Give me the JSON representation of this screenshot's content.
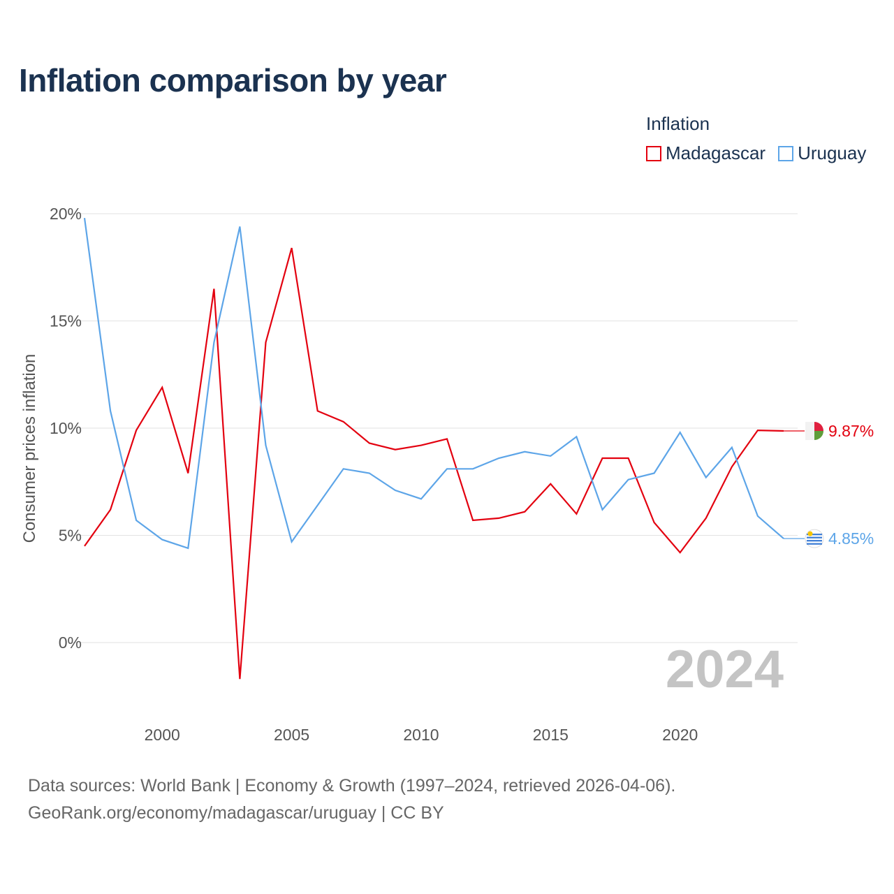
{
  "title": "Inflation comparison by year",
  "legend": {
    "title": "Inflation",
    "items": [
      {
        "name": "Madagascar",
        "color": "#e3000f"
      },
      {
        "name": "Uruguay",
        "color": "#5da5e8"
      }
    ]
  },
  "source": {
    "line1": "Data sources: World Bank | Economy & Growth (1997–2024, retrieved 2026-04-06).",
    "line2": "GeoRank.org/economy/madagascar/uruguay | CC BY"
  },
  "chart_data": {
    "type": "line",
    "title": "Inflation comparison by year",
    "xlabel": "",
    "ylabel": "Consumer prices inflation",
    "x": [
      1997,
      1998,
      1999,
      2000,
      2001,
      2002,
      2003,
      2004,
      2005,
      2006,
      2007,
      2008,
      2009,
      2010,
      2011,
      2012,
      2013,
      2014,
      2015,
      2016,
      2017,
      2018,
      2019,
      2020,
      2021,
      2022,
      2023,
      2024
    ],
    "xlim": [
      1997,
      2024
    ],
    "ylim": [
      -3,
      20
    ],
    "xticks": [
      2000,
      2005,
      2010,
      2015,
      2020
    ],
    "yticks": [
      0,
      5,
      10,
      15,
      20
    ],
    "ytick_labels": [
      "0%",
      "5%",
      "10%",
      "15%",
      "20%"
    ],
    "highlight_year": "2024",
    "series": [
      {
        "name": "Madagascar",
        "color": "#e3000f",
        "end_label": "9.87%",
        "values": [
          4.5,
          6.2,
          9.9,
          11.9,
          7.9,
          16.5,
          -1.7,
          14.0,
          18.4,
          10.8,
          10.3,
          9.3,
          9.0,
          9.2,
          9.5,
          5.7,
          5.8,
          6.1,
          7.4,
          6.0,
          8.6,
          8.6,
          5.6,
          4.2,
          5.8,
          8.2,
          9.9,
          9.87
        ]
      },
      {
        "name": "Uruguay",
        "color": "#5da5e8",
        "end_label": "4.85%",
        "values": [
          19.8,
          10.8,
          5.7,
          4.8,
          4.4,
          14.0,
          19.4,
          9.2,
          4.7,
          6.4,
          8.1,
          7.9,
          7.1,
          6.7,
          8.1,
          8.1,
          8.6,
          8.9,
          8.7,
          9.6,
          6.2,
          7.6,
          7.9,
          9.8,
          7.7,
          9.1,
          5.9,
          4.85
        ]
      }
    ]
  }
}
